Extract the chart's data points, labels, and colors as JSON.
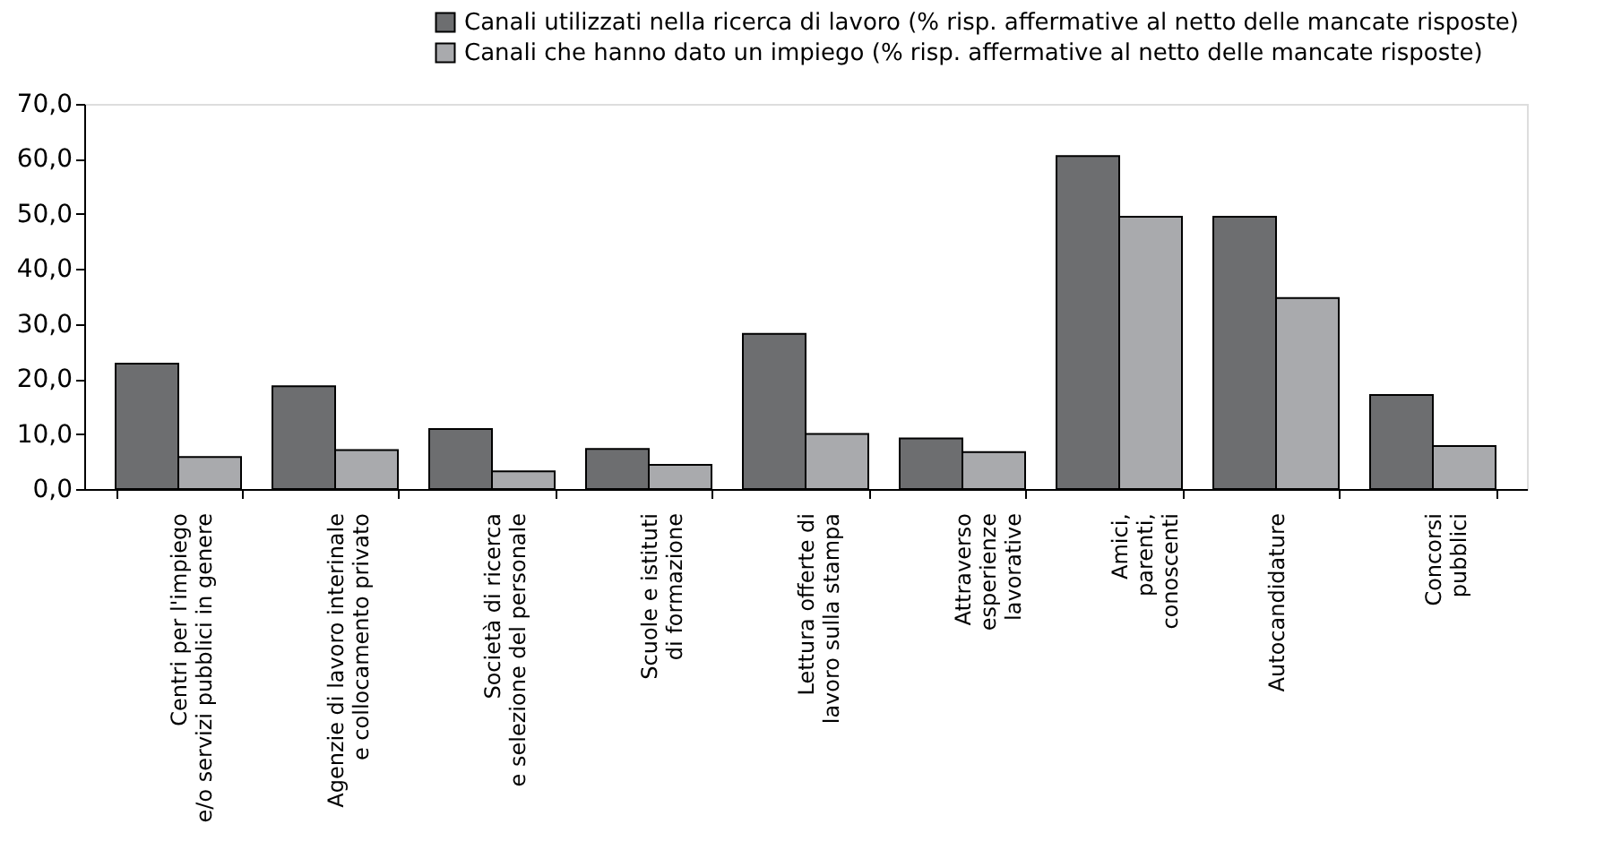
{
  "chart_data": {
    "type": "bar",
    "categories": [
      "Centri per l'impiego\ne/o servizi pubblici in genere",
      "Agenzie di lavoro interinale\ne collocamento privato",
      "Società di ricerca\ne selezione del personale",
      "Scuole e istituti\ndi formazione",
      "Lettura offerte di\nlavoro sulla stampa",
      "Attraverso\nesperienze\nlavorative",
      "Amici,\nparenti,\nconoscenti",
      "Autocandidature",
      "Concorsi\npubblici"
    ],
    "series": [
      {
        "name": "Canali utilizzati nella ricerca di lavoro (% risp. affermative al netto delle mancate risposte)",
        "color": "#6d6e70",
        "values": [
          22.8,
          18.7,
          10.9,
          7.3,
          28.2,
          9.2,
          60.5,
          49.5,
          17.1
        ]
      },
      {
        "name": "Canali che hanno dato un impiego (% risp. affermative al netto delle mancate risposte)",
        "color": "#a9aaad",
        "values": [
          5.8,
          7.1,
          3.2,
          4.4,
          10.0,
          6.7,
          49.5,
          34.7,
          7.8
        ]
      }
    ],
    "ylim": [
      0,
      70
    ],
    "yticks": [
      {
        "value": 0,
        "label": "0,0"
      },
      {
        "value": 10,
        "label": "10,0"
      },
      {
        "value": 20,
        "label": "20,0"
      },
      {
        "value": 30,
        "label": "30,0"
      },
      {
        "value": 40,
        "label": "40,0"
      },
      {
        "value": 50,
        "label": "50,0"
      },
      {
        "value": 60,
        "label": "60,0"
      },
      {
        "value": 70,
        "label": "70,0"
      }
    ],
    "grid": false,
    "legend": "top right"
  }
}
